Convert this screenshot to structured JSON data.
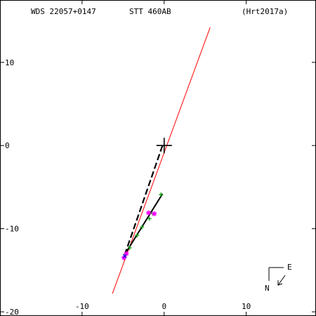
{
  "header": {
    "wds": "WDS 22057+0147",
    "pair": "STT 460AB",
    "ref": "(Hrt2017a)"
  },
  "compass": {
    "north": "N",
    "east": "E"
  },
  "chart_data": {
    "type": "scatter",
    "title": "STT 460AB",
    "xlabel": "",
    "ylabel": "",
    "xlim": [
      -20,
      18.5
    ],
    "ylim": [
      -20.5,
      17.5
    ],
    "x_ticks": [
      -10,
      0,
      10
    ],
    "y_ticks": [
      10,
      0,
      -10,
      -20
    ],
    "grid": false,
    "primary": [
      0,
      0
    ],
    "red_line": [
      [
        5.6,
        14.2
      ],
      [
        -6.3,
        -17.8
      ]
    ],
    "dashed_line": [
      [
        -0.2,
        0
      ],
      [
        -4.9,
        -13.4
      ]
    ],
    "solid_line": [
      [
        -0.2,
        -5.8
      ],
      [
        -4.8,
        -13.1
      ]
    ],
    "green_points": [
      [
        -0.4,
        -5.9
      ],
      [
        -1.4,
        -8.2
      ],
      [
        -1.8,
        -8.8
      ],
      [
        -2.7,
        -9.8
      ],
      [
        -3.3,
        -10.8
      ],
      [
        -4.2,
        -12.3
      ],
      [
        -4.7,
        -13.1
      ]
    ],
    "magenta_points": [
      [
        -1.2,
        -8.2
      ],
      [
        -1.9,
        -8.1
      ],
      [
        -4.6,
        -13.0
      ],
      [
        -4.9,
        -13.5
      ]
    ],
    "blue_points": [
      [
        -4.8,
        -13.3
      ]
    ]
  }
}
